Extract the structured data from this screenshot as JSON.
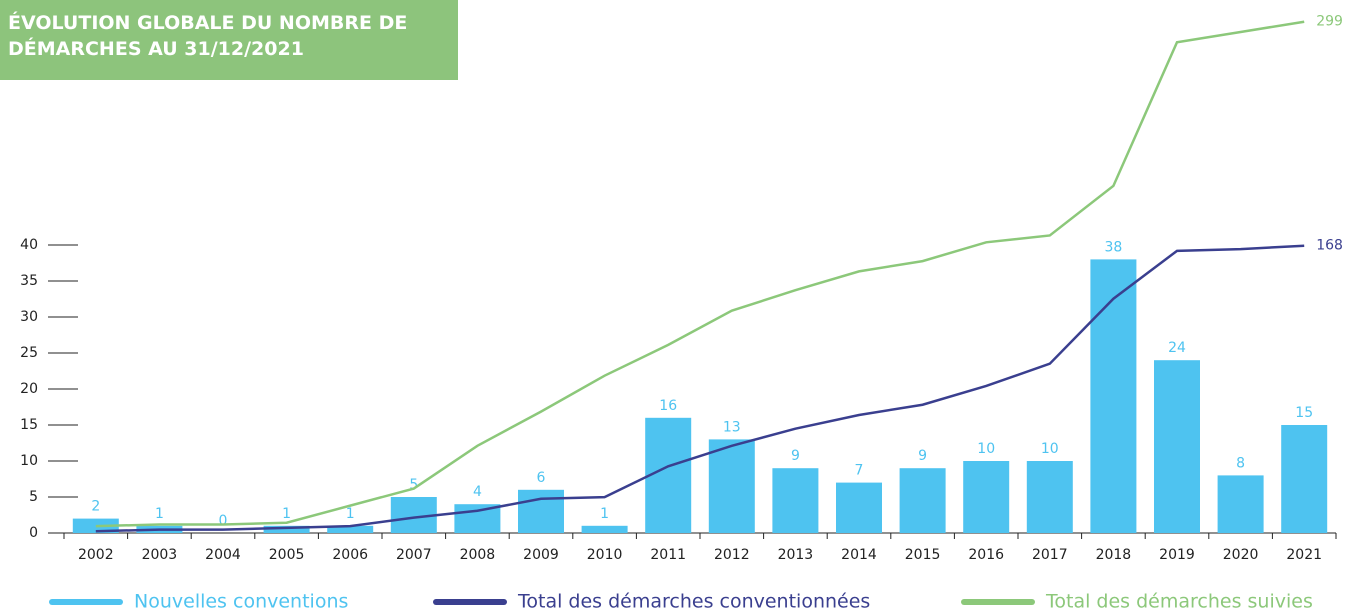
{
  "chart_data": {
    "type": "bar",
    "title": "ÉVOLUTION GLOBALE  DU NOMBRE DE DÉMARCHES AU 31/12/2021",
    "categories": [
      "2002",
      "2003",
      "2004",
      "2005",
      "2006",
      "2007",
      "2008",
      "2009",
      "2010",
      "2011",
      "2012",
      "2013",
      "2014",
      "2015",
      "2016",
      "2017",
      "2018",
      "2019",
      "2020",
      "2021"
    ],
    "series": [
      {
        "name": "Nouvelles conventions",
        "type": "bar",
        "color": "#4ec3f0",
        "values": [
          2,
          1,
          0,
          1,
          1,
          5,
          4,
          6,
          1,
          16,
          13,
          9,
          7,
          9,
          10,
          10,
          38,
          24,
          8,
          15
        ]
      },
      {
        "name": "Total des démarches conventionnées",
        "type": "line",
        "axis": "y2",
        "color": "#3a3f8f",
        "values": [
          1,
          2,
          2,
          3,
          4,
          9,
          13,
          20,
          21,
          39,
          51,
          61,
          69,
          75,
          86,
          99,
          137,
          165,
          166,
          168
        ]
      },
      {
        "name": "Total des démarches suivies",
        "type": "line",
        "axis": "y2",
        "color": "#8cc87a",
        "values": [
          4,
          5,
          5,
          6,
          16,
          26,
          51,
          71,
          92,
          110,
          130,
          142,
          153,
          159,
          170,
          174,
          203,
          287,
          293,
          299
        ]
      }
    ],
    "ylim": [
      0,
      40
    ],
    "yticks": [
      0,
      5,
      10,
      15,
      20,
      25,
      30,
      35,
      40
    ],
    "y2lim": [
      0,
      300
    ]
  }
}
